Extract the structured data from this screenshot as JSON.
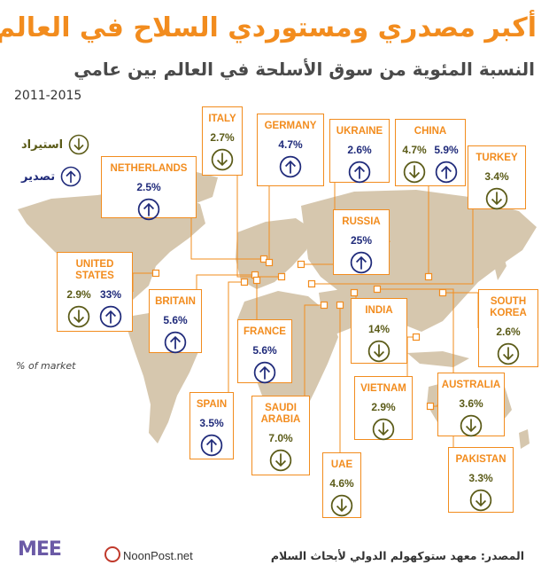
{
  "header": {
    "title": "أكبر مصدري ومستوردي السلاح في العالم",
    "subtitle": "النسبة المئوية من سوق الأسلحة في العالم بين عامي",
    "years": "2011-2015"
  },
  "legend": {
    "import_label": "استيراد",
    "export_label": "تصدير",
    "market_note": "% of market"
  },
  "colors": {
    "accent": "#f28c1e",
    "export": "#1f2a7a",
    "import": "#5b5b18",
    "land": "#d6c7ae"
  },
  "footer": {
    "source": "المصدر: معهد ستوكهولم الدولي لأبحاث السلام",
    "mee_logo": "MEE",
    "site": "NoonPost.net"
  },
  "chart_data": {
    "type": "table",
    "title": "أكبر مصدري ومستوردي السلاح في العالم",
    "entries": [
      {
        "country": "UNITED STATES",
        "values": [
          {
            "type": "import",
            "value": "2.9%"
          },
          {
            "type": "export",
            "value": "33%"
          }
        ]
      },
      {
        "country": "NETHERLANDS",
        "values": [
          {
            "type": "export",
            "value": "2.5%"
          }
        ]
      },
      {
        "country": "ITALY",
        "values": [
          {
            "type": "import",
            "value": "2.7%"
          }
        ]
      },
      {
        "country": "GERMANY",
        "values": [
          {
            "type": "export",
            "value": "4.7%"
          }
        ]
      },
      {
        "country": "UKRAINE",
        "values": [
          {
            "type": "export",
            "value": "2.6%"
          }
        ]
      },
      {
        "country": "CHINA",
        "values": [
          {
            "type": "import",
            "value": "4.7%"
          },
          {
            "type": "export",
            "value": "5.9%"
          }
        ]
      },
      {
        "country": "TURKEY",
        "values": [
          {
            "type": "import",
            "value": "3.4%"
          }
        ]
      },
      {
        "country": "RUSSIA",
        "values": [
          {
            "type": "export",
            "value": "25%"
          }
        ]
      },
      {
        "country": "BRITAIN",
        "values": [
          {
            "type": "export",
            "value": "5.6%"
          }
        ]
      },
      {
        "country": "FRANCE",
        "values": [
          {
            "type": "export",
            "value": "5.6%"
          }
        ]
      },
      {
        "country": "INDIA",
        "values": [
          {
            "type": "import",
            "value": "14%"
          }
        ]
      },
      {
        "country": "SOUTH KOREA",
        "values": [
          {
            "type": "import",
            "value": "2.6%"
          }
        ]
      },
      {
        "country": "SPAIN",
        "values": [
          {
            "type": "export",
            "value": "3.5%"
          }
        ]
      },
      {
        "country": "SAUDI ARABIA",
        "values": [
          {
            "type": "import",
            "value": "7.0%"
          }
        ]
      },
      {
        "country": "VIETNAM",
        "values": [
          {
            "type": "import",
            "value": "2.9%"
          }
        ]
      },
      {
        "country": "AUSTRALIA",
        "values": [
          {
            "type": "import",
            "value": "3.6%"
          }
        ]
      },
      {
        "country": "UAE",
        "values": [
          {
            "type": "import",
            "value": "4.6%"
          }
        ]
      },
      {
        "country": "PAKISTAN",
        "values": [
          {
            "type": "import",
            "value": "3.3%"
          }
        ]
      }
    ]
  }
}
